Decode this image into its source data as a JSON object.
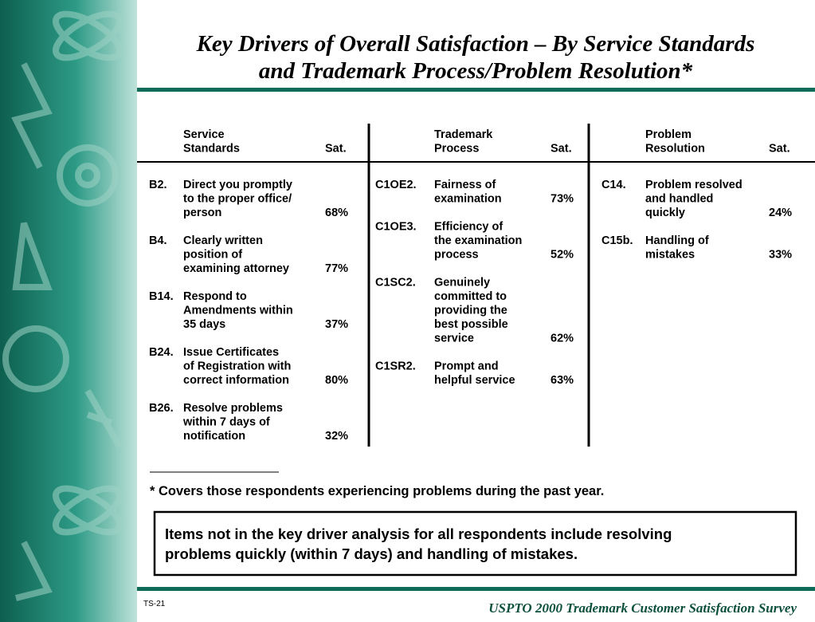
{
  "header": {
    "title_lines": [
      "Key Drivers of Overall Satisfaction –  By Service Standards",
      "and Trademark Process/Problem Resolution*"
    ]
  },
  "table": {
    "columns": [
      {
        "heading": [
          "Service",
          "Standards"
        ],
        "sat_label": "Sat.",
        "items": [
          {
            "code": "B2.",
            "lines": [
              "Direct you promptly",
              "to the proper office/",
              "person"
            ],
            "sat": "68%"
          },
          {
            "code": "B4.",
            "lines": [
              "Clearly written",
              "position of",
              "examining attorney"
            ],
            "sat": "77%"
          },
          {
            "code": "B14.",
            "lines": [
              "Respond to",
              "Amendments within",
              " 35 days"
            ],
            "sat": "37%"
          },
          {
            "code": "B24.",
            "lines": [
              "Issue Certificates",
              "of Registration with",
              "correct information"
            ],
            "sat": "80%"
          },
          {
            "code": "B26.",
            "lines": [
              "Resolve problems",
              "within 7 days of",
              "notification"
            ],
            "sat": "32%"
          }
        ]
      },
      {
        "heading": [
          "Trademark",
          "Process"
        ],
        "sat_label": "Sat.",
        "items": [
          {
            "code": "C1OE2.",
            "lines": [
              "Fairness of",
              "examination"
            ],
            "sat": "73%"
          },
          {
            "code": "C1OE3.",
            "lines": [
              "Efficiency of",
              "the examination",
              "process"
            ],
            "sat": "52%"
          },
          {
            "code": "C1SC2.",
            "lines": [
              "Genuinely",
              "committed to",
              "providing the",
              "best possible",
              "service"
            ],
            "sat": "62%"
          },
          {
            "code": "C1SR2.",
            "lines": [
              "Prompt and",
              "helpful service"
            ],
            "sat": "63%"
          }
        ]
      },
      {
        "heading": [
          "Problem",
          "Resolution"
        ],
        "sat_label": "Sat.",
        "items": [
          {
            "code": "C14.",
            "lines": [
              "Problem resolved",
              "and handled",
              "quickly"
            ],
            "sat": "24%"
          },
          {
            "code": "C15b.",
            "lines": [
              "Handling of",
              "mistakes"
            ],
            "sat": "33%"
          }
        ]
      }
    ]
  },
  "footnote": "* Covers those respondents experiencing problems during the past year.",
  "box_lines": [
    "Items not in the key driver analysis for all respondents include resolving",
    "problems quickly (within 7 days) and handling of mistakes."
  ],
  "footer": {
    "page": "TS-21",
    "survey": "USPTO 2000 Trademark Customer Satisfaction Survey"
  }
}
